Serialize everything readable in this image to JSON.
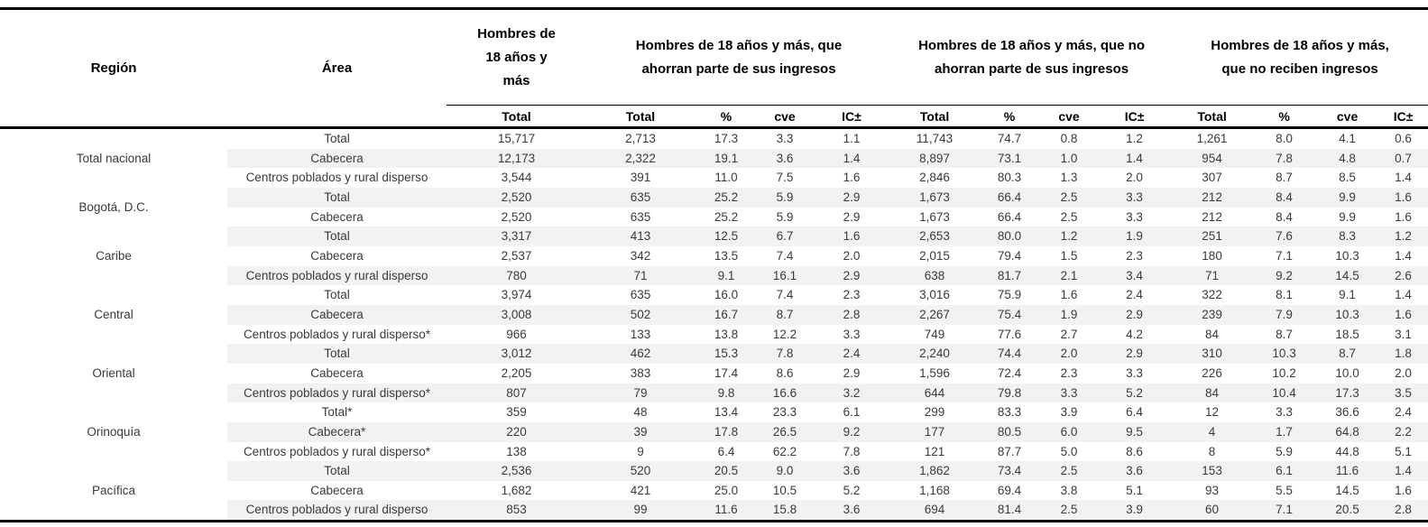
{
  "colors": {
    "row_stripe": "#f2f2f2",
    "border": "#000000",
    "text": "#3a3a3a"
  },
  "table": {
    "header": {
      "region_label": "Región",
      "area_label": "Área",
      "groups": [
        {
          "label": "Hombres de 18 años y más",
          "cols": [
            "Total"
          ]
        },
        {
          "label": "Hombres de 18 años y más, que ahorran parte de sus ingresos",
          "cols": [
            "Total",
            "%",
            "cve",
            "IC±"
          ]
        },
        {
          "label": "Hombres de 18 años y más, que no ahorran parte de sus ingresos",
          "cols": [
            "Total",
            "%",
            "cve",
            "IC±"
          ]
        },
        {
          "label": "Hombres de 18 años y más, que no  reciben ingresos",
          "cols": [
            "Total",
            "%",
            "cve",
            "IC±"
          ]
        }
      ]
    },
    "regions": [
      {
        "name": "Total nacional",
        "rows": [
          {
            "area": "Total",
            "values": [
              "15,717",
              "2,713",
              "17.3",
              "3.3",
              "1.1",
              "11,743",
              "74.7",
              "0.8",
              "1.2",
              "1,261",
              "8.0",
              "4.1",
              "0.6"
            ]
          },
          {
            "area": "Cabecera",
            "values": [
              "12,173",
              "2,322",
              "19.1",
              "3.6",
              "1.4",
              "8,897",
              "73.1",
              "1.0",
              "1.4",
              "954",
              "7.8",
              "4.8",
              "0.7"
            ]
          },
          {
            "area": "Centros poblados y rural disperso",
            "values": [
              "3,544",
              "391",
              "11.0",
              "7.5",
              "1.6",
              "2,846",
              "80.3",
              "1.3",
              "2.0",
              "307",
              "8.7",
              "8.5",
              "1.4"
            ]
          }
        ]
      },
      {
        "name": "Bogotá, D.C.",
        "rows": [
          {
            "area": "Total",
            "values": [
              "2,520",
              "635",
              "25.2",
              "5.9",
              "2.9",
              "1,673",
              "66.4",
              "2.5",
              "3.3",
              "212",
              "8.4",
              "9.9",
              "1.6"
            ]
          },
          {
            "area": "Cabecera",
            "values": [
              "2,520",
              "635",
              "25.2",
              "5.9",
              "2.9",
              "1,673",
              "66.4",
              "2.5",
              "3.3",
              "212",
              "8.4",
              "9.9",
              "1.6"
            ]
          }
        ]
      },
      {
        "name": "Caribe",
        "rows": [
          {
            "area": "Total",
            "values": [
              "3,317",
              "413",
              "12.5",
              "6.7",
              "1.6",
              "2,653",
              "80.0",
              "1.2",
              "1.9",
              "251",
              "7.6",
              "8.3",
              "1.2"
            ]
          },
          {
            "area": "Cabecera",
            "values": [
              "2,537",
              "342",
              "13.5",
              "7.4",
              "2.0",
              "2,015",
              "79.4",
              "1.5",
              "2.3",
              "180",
              "7.1",
              "10.3",
              "1.4"
            ]
          },
          {
            "area": "Centros poblados y rural disperso",
            "values": [
              "780",
              "71",
              "9.1",
              "16.1",
              "2.9",
              "638",
              "81.7",
              "2.1",
              "3.4",
              "71",
              "9.2",
              "14.5",
              "2.6"
            ]
          }
        ]
      },
      {
        "name": "Central",
        "rows": [
          {
            "area": "Total",
            "values": [
              "3,974",
              "635",
              "16.0",
              "7.4",
              "2.3",
              "3,016",
              "75.9",
              "1.6",
              "2.4",
              "322",
              "8.1",
              "9.1",
              "1.4"
            ]
          },
          {
            "area": "Cabecera",
            "values": [
              "3,008",
              "502",
              "16.7",
              "8.7",
              "2.8",
              "2,267",
              "75.4",
              "1.9",
              "2.9",
              "239",
              "7.9",
              "10.3",
              "1.6"
            ]
          },
          {
            "area": "Centros poblados y rural disperso*",
            "values": [
              "966",
              "133",
              "13.8",
              "12.2",
              "3.3",
              "749",
              "77.6",
              "2.7",
              "4.2",
              "84",
              "8.7",
              "18.5",
              "3.1"
            ]
          }
        ]
      },
      {
        "name": "Oriental",
        "rows": [
          {
            "area": "Total",
            "values": [
              "3,012",
              "462",
              "15.3",
              "7.8",
              "2.4",
              "2,240",
              "74.4",
              "2.0",
              "2.9",
              "310",
              "10.3",
              "8.7",
              "1.8"
            ]
          },
          {
            "area": "Cabecera",
            "values": [
              "2,205",
              "383",
              "17.4",
              "8.6",
              "2.9",
              "1,596",
              "72.4",
              "2.3",
              "3.3",
              "226",
              "10.2",
              "10.0",
              "2.0"
            ]
          },
          {
            "area": "Centros poblados y rural disperso*",
            "values": [
              "807",
              "79",
              "9.8",
              "16.6",
              "3.2",
              "644",
              "79.8",
              "3.3",
              "5.2",
              "84",
              "10.4",
              "17.3",
              "3.5"
            ]
          }
        ]
      },
      {
        "name": "Orinoquía",
        "rows": [
          {
            "area": "Total*",
            "values": [
              "359",
              "48",
              "13.4",
              "23.3",
              "6.1",
              "299",
              "83.3",
              "3.9",
              "6.4",
              "12",
              "3.3",
              "36.6",
              "2.4"
            ]
          },
          {
            "area": "Cabecera*",
            "values": [
              "220",
              "39",
              "17.8",
              "26.5",
              "9.2",
              "177",
              "80.5",
              "6.0",
              "9.5",
              "4",
              "1.7",
              "64.8",
              "2.2"
            ]
          },
          {
            "area": "Centros poblados y rural disperso*",
            "values": [
              "138",
              "9",
              "6.4",
              "62.2",
              "7.8",
              "121",
              "87.7",
              "5.0",
              "8.6",
              "8",
              "5.9",
              "44.8",
              "5.1"
            ]
          }
        ]
      },
      {
        "name": "Pacífica",
        "rows": [
          {
            "area": "Total",
            "values": [
              "2,536",
              "520",
              "20.5",
              "9.0",
              "3.6",
              "1,862",
              "73.4",
              "2.5",
              "3.6",
              "153",
              "6.1",
              "11.6",
              "1.4"
            ]
          },
          {
            "area": "Cabecera",
            "values": [
              "1,682",
              "421",
              "25.0",
              "10.5",
              "5.2",
              "1,168",
              "69.4",
              "3.8",
              "5.1",
              "93",
              "5.5",
              "14.5",
              "1.6"
            ]
          },
          {
            "area": "Centros poblados y rural disperso",
            "values": [
              "853",
              "99",
              "11.6",
              "15.8",
              "3.6",
              "694",
              "81.4",
              "2.5",
              "3.9",
              "60",
              "7.1",
              "20.5",
              "2.8"
            ]
          }
        ]
      }
    ]
  }
}
